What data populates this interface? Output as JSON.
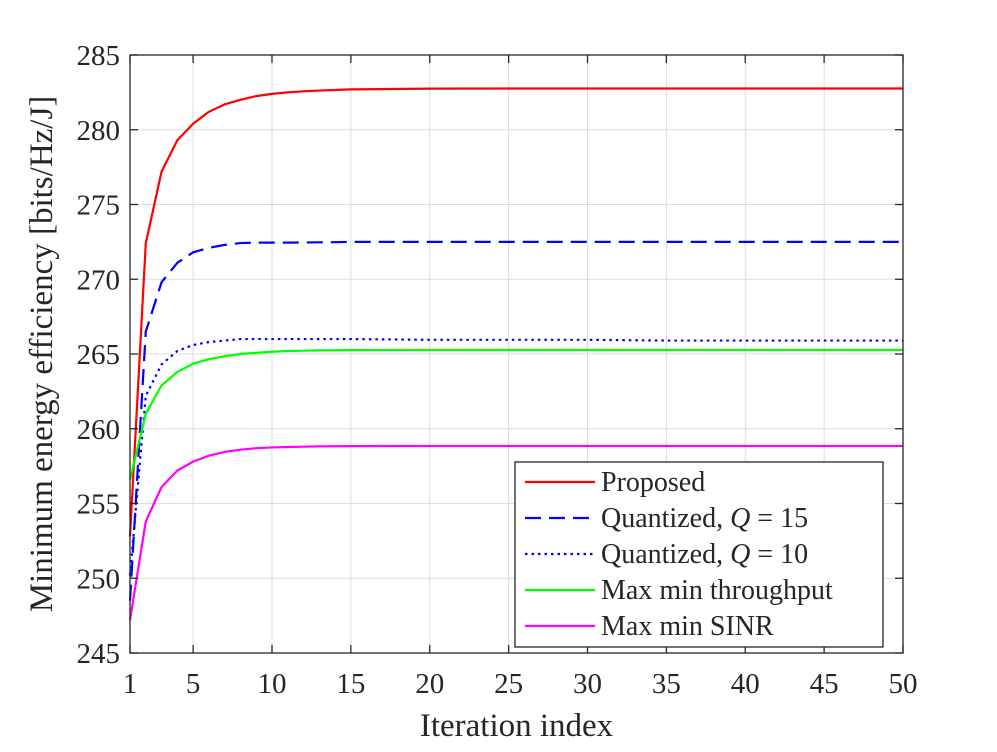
{
  "chart_data": {
    "type": "line",
    "title": "",
    "xlabel": "Iteration index",
    "ylabel": "Minimum energy efficiency [bits/Hz/J]",
    "xlim": [
      1,
      50
    ],
    "ylim": [
      245,
      285
    ],
    "xticks": [
      1,
      5,
      10,
      15,
      20,
      25,
      30,
      35,
      40,
      45,
      50
    ],
    "yticks": [
      245,
      250,
      255,
      260,
      265,
      270,
      275,
      280,
      285
    ],
    "grid": true,
    "legend_position": "bottom-right",
    "x": [
      1,
      2,
      3,
      4,
      5,
      6,
      7,
      8,
      9,
      10,
      11,
      12,
      13,
      14,
      15,
      20,
      25,
      30,
      35,
      40,
      45,
      50
    ],
    "series": [
      {
        "name": "Proposed",
        "color": "#ff0000",
        "dash": "solid",
        "values": [
          252.8,
          272.4,
          277.2,
          279.3,
          280.4,
          281.2,
          281.7,
          282.0,
          282.25,
          282.4,
          282.5,
          282.57,
          282.62,
          282.66,
          282.7,
          282.75,
          282.76,
          282.76,
          282.76,
          282.76,
          282.76,
          282.76
        ]
      },
      {
        "name": "Quantized, Q = 15",
        "legend_prefix": "Quantized, ",
        "legend_var": "Q",
        "legend_suffix": " = 15",
        "color": "#0000ff",
        "dash": "dashed",
        "values": [
          248.5,
          266.5,
          269.8,
          271.1,
          271.8,
          272.1,
          272.3,
          272.42,
          272.45,
          272.45,
          272.45,
          272.46,
          272.47,
          272.48,
          272.5,
          272.5,
          272.5,
          272.5,
          272.5,
          272.5,
          272.5,
          272.5
        ]
      },
      {
        "name": "Quantized, Q = 10",
        "legend_prefix": "Quantized, ",
        "legend_var": "Q",
        "legend_suffix": " = 10",
        "color": "#0000ff",
        "dash": "dotted",
        "values": [
          250.2,
          262.2,
          264.3,
          265.2,
          265.6,
          265.8,
          265.9,
          266.0,
          266.0,
          266.0,
          266.0,
          266.0,
          266.0,
          266.0,
          266.0,
          265.95,
          265.95,
          265.95,
          265.9,
          265.9,
          265.9,
          265.9
        ]
      },
      {
        "name": "Max min throughput",
        "color": "#00ff00",
        "dash": "solid",
        "values": [
          256.6,
          261.0,
          262.9,
          263.8,
          264.35,
          264.65,
          264.85,
          265.0,
          265.08,
          265.15,
          265.2,
          265.22,
          265.24,
          265.25,
          265.26,
          265.27,
          265.27,
          265.27,
          265.27,
          265.27,
          265.27,
          265.27
        ]
      },
      {
        "name": "Max min SINR",
        "color": "#ff00ff",
        "dash": "solid",
        "values": [
          247.2,
          253.8,
          256.1,
          257.2,
          257.8,
          258.2,
          258.45,
          258.6,
          258.7,
          258.75,
          258.78,
          258.8,
          258.82,
          258.83,
          258.84,
          258.85,
          258.85,
          258.85,
          258.85,
          258.85,
          258.85,
          258.85
        ]
      }
    ]
  }
}
